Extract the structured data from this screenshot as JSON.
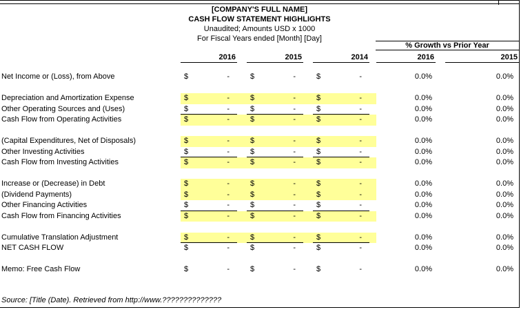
{
  "titles": {
    "company": "[COMPANY'S FULL NAME]",
    "statement": "CASH FLOW STATEMENT HIGHLIGHTS",
    "subtitle1": "Unaudited; Amounts USD x 1000",
    "subtitle2": "For Fiscal Years ended [Month] [Day]"
  },
  "growth_header": "% Growth vs Prior Year",
  "year_columns": [
    "2016",
    "2015",
    "2014"
  ],
  "growth_columns": [
    "2016",
    "2015"
  ],
  "currency_symbol": "$",
  "rows": [
    {
      "label": "Net Income or (Loss), from Above",
      "highlight": false,
      "underline": false,
      "values": [
        "-",
        "-",
        "-"
      ],
      "growth": [
        "0.0%",
        "0.0%"
      ]
    },
    {
      "blank": true
    },
    {
      "label": "Depreciation and Amortization Expense",
      "highlight": true,
      "underline": false,
      "values": [
        "-",
        "-",
        "-"
      ],
      "growth": [
        "0.0%",
        "0.0%"
      ]
    },
    {
      "label": "Other Operating Sources and (Uses)",
      "highlight": false,
      "underline": true,
      "values": [
        "-",
        "-",
        "-"
      ],
      "growth": [
        "0.0%",
        "0.0%"
      ]
    },
    {
      "label": "Cash Flow from Operating Activities",
      "highlight": true,
      "underline": false,
      "values": [
        "-",
        "-",
        "-"
      ],
      "growth": [
        "0.0%",
        "0.0%"
      ]
    },
    {
      "blank": true
    },
    {
      "label": "(Capital Expenditures, Net of Disposals)",
      "highlight": true,
      "underline": false,
      "values": [
        "-",
        "-",
        "-"
      ],
      "growth": [
        "0.0%",
        "0.0%"
      ]
    },
    {
      "label": "Other Investing Activities",
      "highlight": false,
      "underline": true,
      "values": [
        "-",
        "-",
        "-"
      ],
      "growth": [
        "0.0%",
        "0.0%"
      ]
    },
    {
      "label": "Cash Flow from Investing Activities",
      "highlight": true,
      "underline": false,
      "values": [
        "-",
        "-",
        "-"
      ],
      "growth": [
        "0.0%",
        "0.0%"
      ]
    },
    {
      "blank": true
    },
    {
      "label": "Increase or (Decrease) in Debt",
      "highlight": true,
      "underline": false,
      "values": [
        "-",
        "-",
        "-"
      ],
      "growth": [
        "0.0%",
        "0.0%"
      ]
    },
    {
      "label": "(Dividend Payments)",
      "highlight": true,
      "underline": false,
      "values": [
        "-",
        "-",
        "-"
      ],
      "growth": [
        "0.0%",
        "0.0%"
      ]
    },
    {
      "label": "Other Financing Activities",
      "highlight": false,
      "underline": true,
      "values": [
        "-",
        "-",
        "-"
      ],
      "growth": [
        "0.0%",
        "0.0%"
      ]
    },
    {
      "label": "Cash Flow from Financing Activities",
      "highlight": true,
      "underline": false,
      "values": [
        "-",
        "-",
        "-"
      ],
      "growth": [
        "0.0%",
        "0.0%"
      ]
    },
    {
      "blank": true
    },
    {
      "label": "Cumulative Translation Adjustment",
      "highlight": true,
      "underline": true,
      "values": [
        "-",
        "-",
        "-"
      ],
      "growth": [
        "0.0%",
        "0.0%"
      ]
    },
    {
      "label": "NET CASH FLOW",
      "highlight": false,
      "underline": false,
      "values": [
        "-",
        "-",
        "-"
      ],
      "growth": [
        "0.0%",
        "0.0%"
      ]
    },
    {
      "blank": true
    },
    {
      "label": "Memo: Free Cash Flow",
      "highlight": false,
      "underline": false,
      "values": [
        "-",
        "-",
        "-"
      ],
      "growth": [
        "0.0%",
        "0.0%"
      ]
    }
  ],
  "source_note": "Source: [Title (Date). Retrieved from http://www.??????????????",
  "colors": {
    "highlight": "#ffff99",
    "border": "#000000"
  }
}
